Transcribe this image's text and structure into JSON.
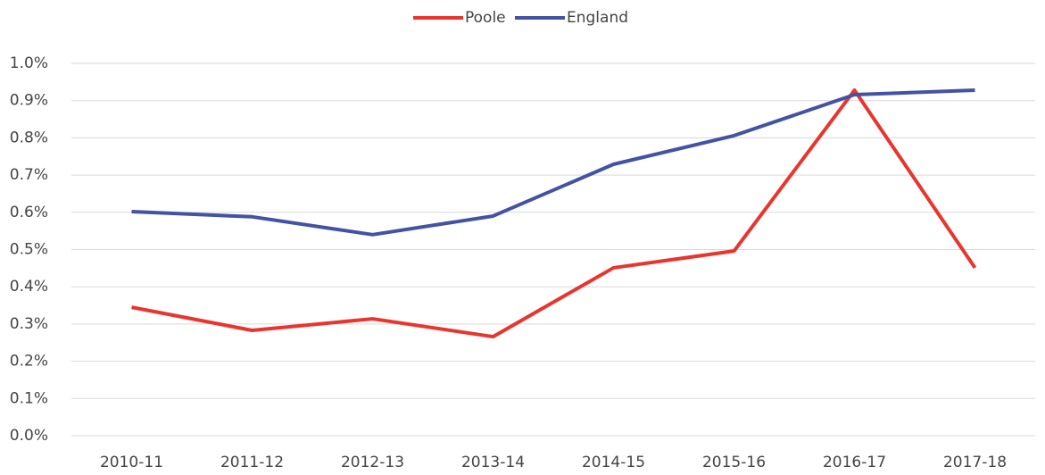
{
  "chart_data": {
    "type": "line",
    "categories": [
      "2010-11",
      "2011-12",
      "2012-13",
      "2013-14",
      "2014-15",
      "2015-16",
      "2016-17",
      "2017-18"
    ],
    "series": [
      {
        "name": "Poole",
        "color": "#e8352e",
        "values": [
          0.345,
          0.283,
          0.314,
          0.266,
          0.451,
          0.496,
          0.928,
          0.451
        ]
      },
      {
        "name": "England",
        "color": "#4253a3",
        "values": [
          0.602,
          0.588,
          0.54,
          0.59,
          0.729,
          0.806,
          0.916,
          0.928
        ]
      }
    ],
    "ylim": [
      0,
      1
    ],
    "yticks": [
      {
        "value": 0,
        "label": "0.0%"
      },
      {
        "value": 0.1,
        "label": "0.1%"
      },
      {
        "value": 0.2,
        "label": "0.2%"
      },
      {
        "value": 0.3,
        "label": "0.3%"
      },
      {
        "value": 0.4,
        "label": "0.4%"
      },
      {
        "value": 0.5,
        "label": "0.5%"
      },
      {
        "value": 0.6,
        "label": "0.6%"
      },
      {
        "value": 0.7,
        "label": "0.7%"
      },
      {
        "value": 0.8,
        "label": "0.8%"
      },
      {
        "value": 0.9,
        "label": "0.9%"
      },
      {
        "value": 1,
        "label": "1.0%"
      }
    ],
    "grid": true,
    "legend": "top"
  }
}
